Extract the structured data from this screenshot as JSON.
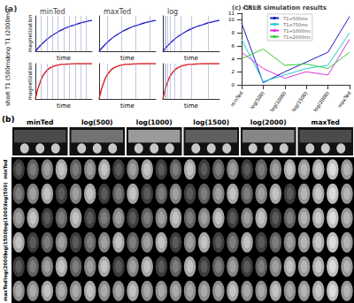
{
  "panel_a": {
    "label": "(a)",
    "xlabel": "time",
    "ylabel": "magnetization",
    "xlim": [
      0,
      10
    ],
    "ylim": [
      0,
      1
    ],
    "tick_labels": false,
    "x": [
      0,
      1,
      2,
      3,
      4,
      5,
      6,
      7,
      8,
      9,
      10
    ],
    "columns": [
      {
        "title": "minTed",
        "sample_times": [
          1,
          2,
          3,
          4,
          5,
          6,
          7,
          8,
          9
        ]
      },
      {
        "title": "maxTed",
        "sample_times": [
          1.5,
          4,
          6.5,
          9
        ]
      },
      {
        "title": "log",
        "sample_times": [
          0.3,
          0.5,
          0.8,
          1.3,
          2,
          3.2,
          5,
          8
        ]
      }
    ],
    "rows": [
      {
        "label": "long T1 (2000ms)",
        "color": "#1a1acc",
        "values": [
          0,
          0.18,
          0.33,
          0.45,
          0.55,
          0.63,
          0.7,
          0.75,
          0.8,
          0.84,
          0.87
        ]
      },
      {
        "label": "short T1 (500ms)",
        "color": "#dd1111",
        "values": [
          0,
          0.55,
          0.8,
          0.91,
          0.96,
          0.98,
          0.99,
          1,
          1,
          1,
          1
        ]
      }
    ]
  },
  "panel_b": {
    "label": "(b)",
    "columns": [
      "minTed",
      "log(500)",
      "log(1000)",
      "log(1500)",
      "log(2000)",
      "maxTed"
    ],
    "rows": [
      "minTed",
      "log(500)",
      "log(1000)",
      "log(1500)",
      "log(2000)",
      "maxTed"
    ]
  },
  "chart_data": {
    "type": "line",
    "title": "(c) CRLB simulation results",
    "categories": [
      "minTed",
      "log(500)",
      "log(1000)",
      "log(1500)",
      "log(2000)",
      "maxTed"
    ],
    "series": [
      {
        "name": "T1=500ms",
        "color": "#1a1acc",
        "values": [
          9.5,
          0.3,
          2,
          3.5,
          5,
          10.5
        ]
      },
      {
        "name": "T1=750ms",
        "color": "#22cccc",
        "values": [
          7,
          0.5,
          1.5,
          2.5,
          3,
          8
        ]
      },
      {
        "name": "T1=1000ms",
        "color": "#dd33dd",
        "values": [
          5,
          2.5,
          1,
          2,
          1.5,
          7
        ]
      },
      {
        "name": "T1=2000ms",
        "color": "#33cc33",
        "values": [
          4,
          5.5,
          3,
          3.2,
          2.5,
          5
        ]
      }
    ],
    "ylabel": "×10⁻³",
    "ylim": [
      0,
      11
    ],
    "yticks": [
      0,
      2,
      4,
      6,
      8,
      10
    ],
    "legend": "top",
    "grid": false
  }
}
